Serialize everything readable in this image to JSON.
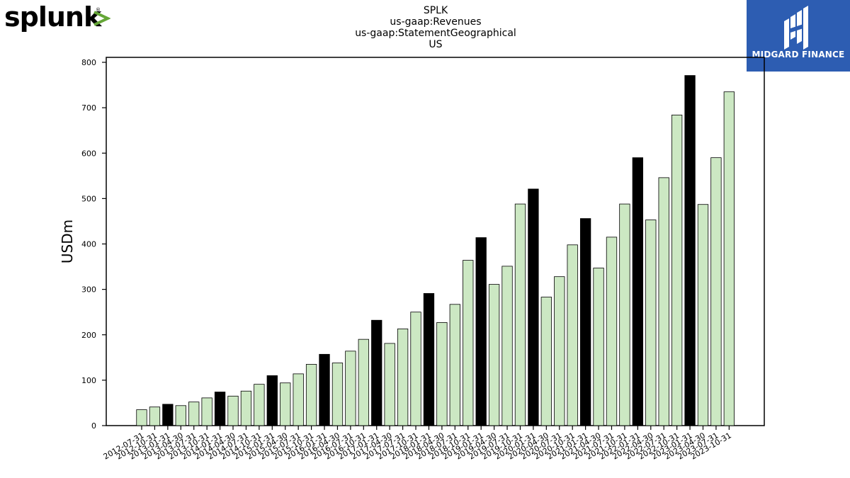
{
  "logo_left": {
    "text": "splunk",
    "mark": ">",
    "trademark": "®",
    "accent_color": "#65a637"
  },
  "logo_right": {
    "text": "MIDGARD FINANCE",
    "background": "#2d5db2"
  },
  "chart_data": {
    "type": "bar",
    "title_lines": [
      "SPLK",
      "us-gaap:Revenues",
      "us-gaap:StatementGeographical",
      "US"
    ],
    "ylabel": "USDm",
    "xlabel": "",
    "ylim": [
      0,
      800
    ],
    "yticks": [
      0,
      100,
      200,
      300,
      400,
      500,
      600,
      700,
      800
    ],
    "grid": false,
    "colors": {
      "quarter": "#cce8c3",
      "fiscal_year_end": "#000000",
      "edge": "#000000"
    },
    "categories": [
      "2012-07-31",
      "2012-10-31",
      "2013-01-31",
      "2013-04-30",
      "2013-07-31",
      "2013-10-31",
      "2014-01-31",
      "2014-04-30",
      "2014-07-31",
      "2014-10-31",
      "2015-01-31",
      "2015-04-30",
      "2015-07-31",
      "2015-10-31",
      "2016-01-31",
      "2016-04-30",
      "2016-07-31",
      "2016-10-31",
      "2017-01-31",
      "2017-04-30",
      "2017-07-31",
      "2017-10-31",
      "2018-01-31",
      "2018-04-30",
      "2018-07-31",
      "2018-10-31",
      "2019-01-31",
      "2019-04-30",
      "2019-07-31",
      "2019-10-31",
      "2020-01-31",
      "2020-04-30",
      "2020-07-31",
      "2020-10-31",
      "2021-01-31",
      "2021-04-30",
      "2021-07-31",
      "2021-10-31",
      "2022-01-31",
      "2022-04-30",
      "2022-07-31",
      "2022-10-31",
      "2023-01-31",
      "2023-04-30",
      "2023-07-31",
      "2023-10-31"
    ],
    "values": [
      35,
      41,
      47,
      44,
      52,
      61,
      74,
      65,
      76,
      91,
      110,
      94,
      114,
      135,
      157,
      138,
      164,
      190,
      232,
      181,
      213,
      250,
      291,
      227,
      267,
      364,
      414,
      311,
      351,
      488,
      521,
      283,
      328,
      398,
      456,
      347,
      415,
      488,
      590,
      453,
      546,
      684,
      771,
      487,
      590,
      735
    ],
    "highlight": [
      false,
      false,
      true,
      false,
      false,
      false,
      true,
      false,
      false,
      false,
      true,
      false,
      false,
      false,
      true,
      false,
      false,
      false,
      true,
      false,
      false,
      false,
      true,
      false,
      false,
      false,
      true,
      false,
      false,
      false,
      true,
      false,
      false,
      false,
      true,
      false,
      false,
      false,
      true,
      false,
      false,
      false,
      true,
      false,
      false,
      false
    ]
  }
}
